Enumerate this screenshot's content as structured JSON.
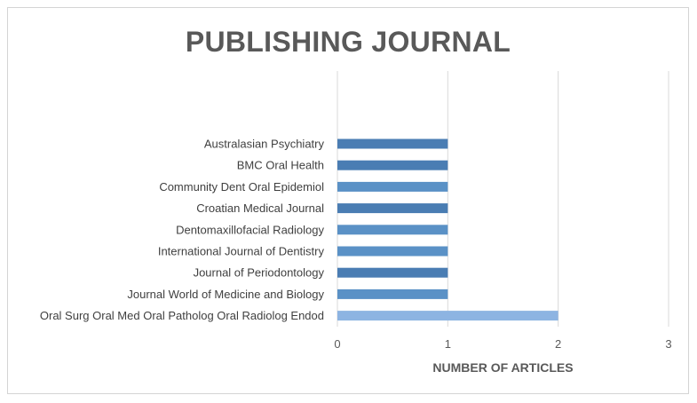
{
  "chart_data": {
    "type": "bar",
    "orientation": "horizontal",
    "title": "PUBLISHING JOURNAL",
    "xlabel": "NUMBER OF ARTICLES",
    "ylabel": "",
    "categories": [
      "Australasian Psychiatry",
      "BMC Oral Health",
      "Community Dent Oral Epidemiol",
      "Croatian Medical Journal",
      "Dentomaxillofacial Radiology",
      "International Journal of Dentistry",
      "Journal of Periodontology",
      "Journal World of Medicine and Biology",
      "Oral Surg Oral Med Oral Patholog Oral Radiolog Endod"
    ],
    "values": [
      1,
      1,
      1,
      1,
      1,
      1,
      1,
      1,
      2
    ],
    "bar_colors": [
      "#4a7db3",
      "#4a7db3",
      "#5a91c6",
      "#4a7db3",
      "#5a91c6",
      "#5a91c6",
      "#4a7db3",
      "#5a91c6",
      "#8db4e2"
    ],
    "xlim": [
      0,
      3
    ],
    "xticks": [
      "0",
      "1",
      "2",
      "3"
    ],
    "grid": true,
    "legend": "none"
  }
}
